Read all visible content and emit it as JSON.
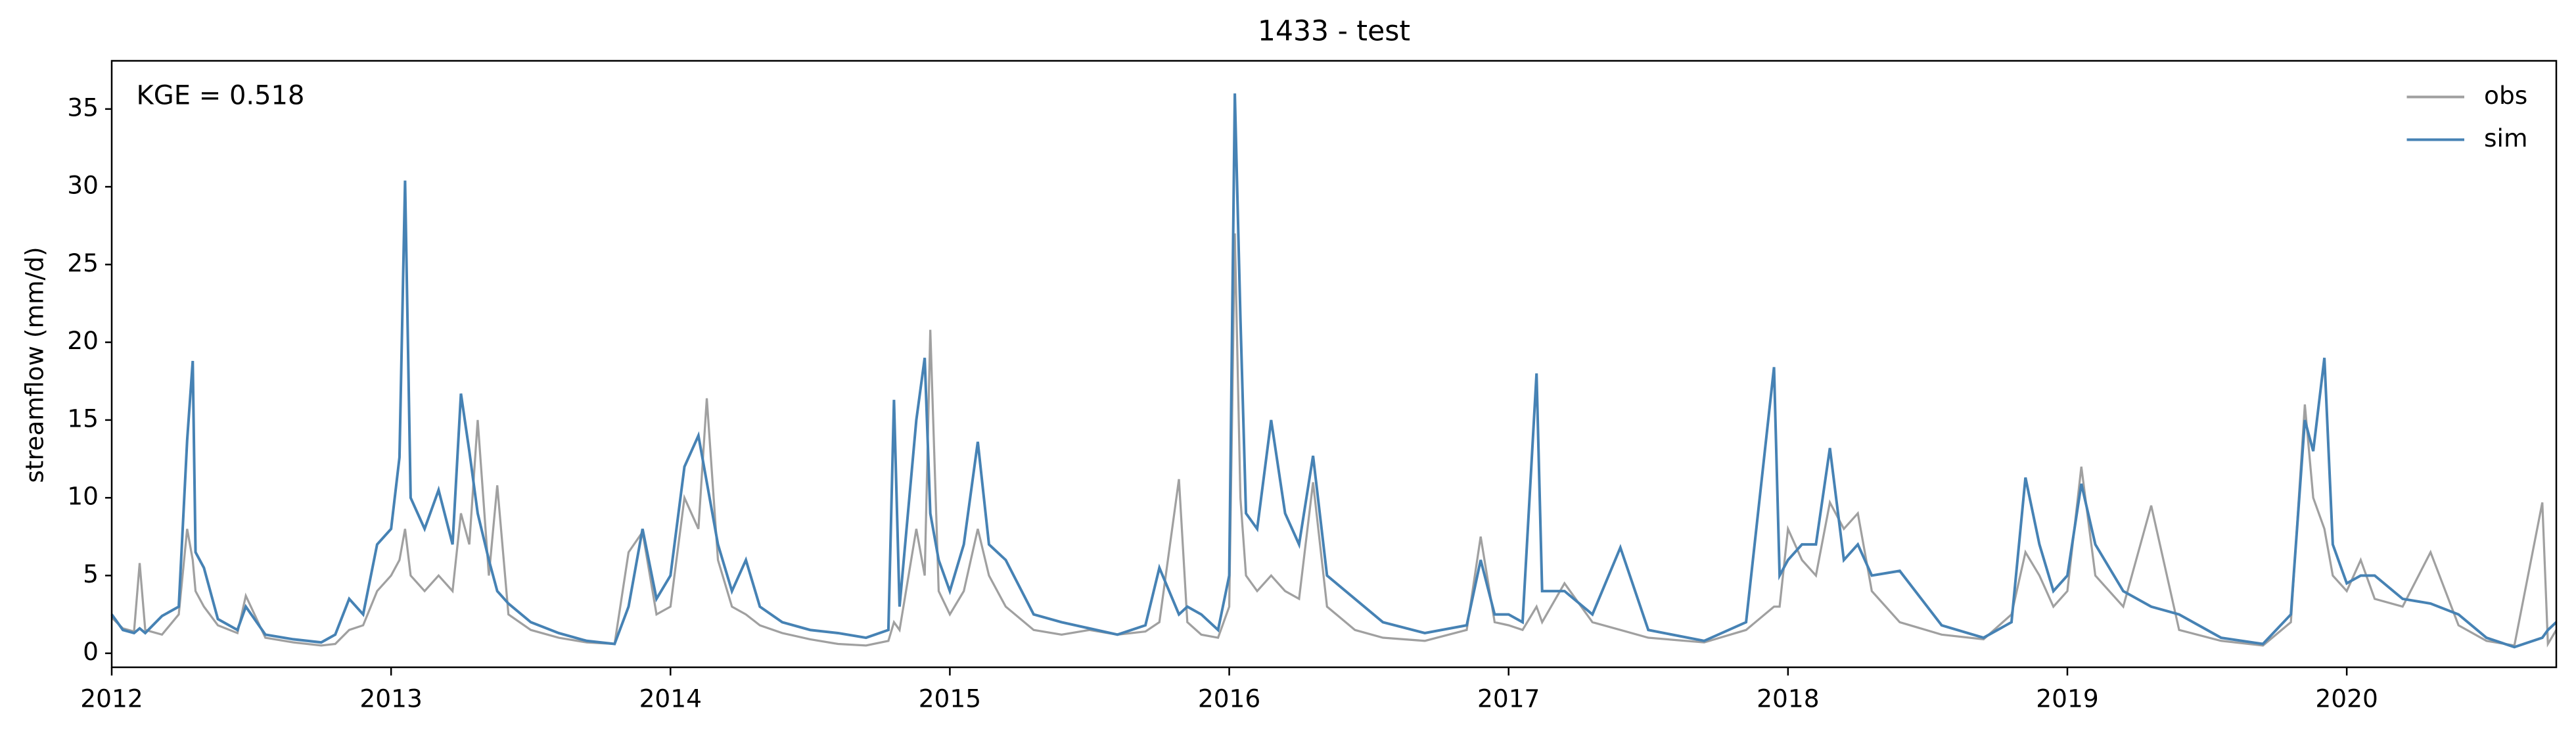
{
  "chart_data": {
    "type": "line",
    "title": "1433 - test",
    "ylabel": "streamflow (mm/d)",
    "annotation": "KGE = 0.518",
    "x": [
      2012.0,
      2012.04,
      2012.08,
      2012.1,
      2012.12,
      2012.18,
      2012.24,
      2012.27,
      2012.29,
      2012.3,
      2012.33,
      2012.38,
      2012.45,
      2012.48,
      2012.55,
      2012.65,
      2012.75,
      2012.8,
      2012.85,
      2012.9,
      2012.95,
      2013.0,
      2013.03,
      2013.05,
      2013.07,
      2013.12,
      2013.17,
      2013.22,
      2013.25,
      2013.28,
      2013.31,
      2013.35,
      2013.38,
      2013.42,
      2013.5,
      2013.6,
      2013.7,
      2013.8,
      2013.85,
      2013.9,
      2013.95,
      2014.0,
      2014.05,
      2014.1,
      2014.13,
      2014.17,
      2014.22,
      2014.27,
      2014.32,
      2014.4,
      2014.5,
      2014.6,
      2014.7,
      2014.78,
      2014.8,
      2014.82,
      2014.88,
      2014.91,
      2014.93,
      2014.96,
      2015.0,
      2015.05,
      2015.1,
      2015.14,
      2015.2,
      2015.3,
      2015.4,
      2015.5,
      2015.6,
      2015.7,
      2015.75,
      2015.82,
      2015.85,
      2015.9,
      2015.96,
      2016.0,
      2016.02,
      2016.04,
      2016.06,
      2016.1,
      2016.15,
      2016.2,
      2016.25,
      2016.3,
      2016.35,
      2016.45,
      2016.55,
      2016.7,
      2016.85,
      2016.9,
      2016.95,
      2017.0,
      2017.05,
      2017.1,
      2017.12,
      2017.2,
      2017.3,
      2017.4,
      2017.5,
      2017.7,
      2017.85,
      2017.95,
      2017.97,
      2018.0,
      2018.05,
      2018.1,
      2018.15,
      2018.2,
      2018.25,
      2018.3,
      2018.4,
      2018.55,
      2018.7,
      2018.8,
      2018.85,
      2018.9,
      2018.95,
      2019.0,
      2019.05,
      2019.1,
      2019.2,
      2019.3,
      2019.4,
      2019.55,
      2019.7,
      2019.8,
      2019.85,
      2019.88,
      2019.92,
      2019.95,
      2020.0,
      2020.05,
      2020.1,
      2020.2,
      2020.3,
      2020.4,
      2020.5,
      2020.6,
      2020.7,
      2020.72,
      2020.75
    ],
    "series": [
      {
        "name": "obs",
        "color": "#a0a0a0",
        "values": [
          2.3,
          1.6,
          1.4,
          5.8,
          1.5,
          1.2,
          2.5,
          8,
          6,
          4,
          3,
          1.8,
          1.3,
          3.7,
          1,
          0.7,
          0.5,
          0.6,
          1.5,
          1.8,
          4,
          5,
          6,
          8,
          5,
          4,
          5,
          4,
          9,
          7,
          15,
          5,
          10.8,
          2.5,
          1.5,
          1,
          0.7,
          0.6,
          6.5,
          7.8,
          2.5,
          3,
          10,
          8,
          16.4,
          6,
          3,
          2.5,
          1.8,
          1.3,
          0.9,
          0.6,
          0.5,
          0.8,
          2,
          1.5,
          8,
          5,
          20.8,
          4,
          2.5,
          4,
          8,
          5,
          3,
          1.5,
          1.2,
          1.5,
          1.2,
          1.4,
          2,
          11.2,
          2,
          1.2,
          1,
          3,
          27,
          10,
          5,
          4,
          5,
          4,
          3.5,
          11,
          3,
          1.5,
          1,
          0.8,
          1.5,
          7.5,
          2,
          1.8,
          1.5,
          3,
          2,
          4.5,
          2,
          1.5,
          1,
          0.7,
          1.5,
          3,
          3,
          8,
          6,
          5,
          9.7,
          8,
          9,
          4,
          2,
          1.2,
          0.9,
          2.5,
          6.5,
          5,
          3,
          4,
          12,
          5,
          3,
          9.5,
          1.5,
          0.8,
          0.5,
          2,
          16,
          10,
          8,
          5,
          4,
          6,
          3.5,
          3,
          6.5,
          1.8,
          0.8,
          0.5,
          9.7,
          0.6,
          1.5
        ]
      },
      {
        "name": "sim",
        "color": "#4682b4",
        "values": [
          2.5,
          1.5,
          1.3,
          1.6,
          1.3,
          2.4,
          3,
          13.7,
          18.8,
          6.5,
          5.5,
          2.2,
          1.5,
          3,
          1.2,
          0.9,
          0.7,
          1.2,
          3.5,
          2.5,
          7,
          8,
          12.6,
          30.4,
          10,
          8,
          10.5,
          7,
          16.7,
          13,
          9,
          6,
          4,
          3.2,
          2,
          1.3,
          0.8,
          0.6,
          3,
          8,
          3.5,
          5,
          12,
          14,
          11,
          7,
          4,
          6,
          3,
          2,
          1.5,
          1.3,
          1.0,
          1.5,
          16.3,
          3,
          15,
          19,
          9,
          6,
          4,
          7,
          13.6,
          7,
          6,
          2.5,
          2,
          1.6,
          1.2,
          1.8,
          5.5,
          2.5,
          3,
          2.5,
          1.5,
          5,
          36,
          21.6,
          9,
          8,
          15,
          9,
          7,
          12.7,
          5,
          3.5,
          2,
          1.3,
          1.8,
          6,
          2.5,
          2.5,
          2,
          18,
          4,
          4,
          2.5,
          6.8,
          1.5,
          0.8,
          2,
          18.4,
          5,
          6,
          7,
          7,
          13.2,
          6,
          7,
          5,
          5.3,
          1.8,
          1,
          2,
          11.3,
          7,
          4,
          5,
          10.9,
          7,
          4,
          3,
          2.5,
          1,
          0.6,
          2.5,
          15,
          13,
          19,
          7,
          4.5,
          5,
          5,
          3.5,
          3.2,
          2.5,
          1,
          0.4,
          1,
          1.5,
          2
        ]
      }
    ],
    "xlim": [
      2012,
      2020.75
    ],
    "xticks": [
      2012,
      2013,
      2014,
      2015,
      2016,
      2017,
      2018,
      2019,
      2020
    ],
    "ylim": [
      -0.9,
      38.1
    ],
    "yticks": [
      0,
      5,
      10,
      15,
      20,
      25,
      30,
      35
    ],
    "legend": "upper right",
    "grid": false
  }
}
